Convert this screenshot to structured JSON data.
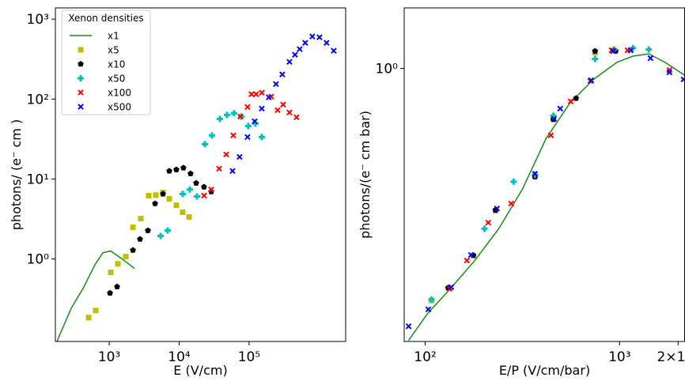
{
  "chart_data": [
    {
      "type": "scatter",
      "xscale": "log",
      "yscale": "log",
      "xlabel": "E (V/cm)",
      "ylabel": "photons/ (e⁻ cm )",
      "xlim": [
        170,
        2400000
      ],
      "ylim": [
        0.093,
        1380
      ],
      "xticks": [
        {
          "value": 1000,
          "label": "10³"
        },
        {
          "value": 10000,
          "label": "10⁴"
        },
        {
          "value": 100000,
          "label": "10⁵"
        }
      ],
      "yticks": [
        {
          "value": 1,
          "label": "10⁰"
        },
        {
          "value": 10,
          "label": "10¹"
        },
        {
          "value": 100,
          "label": "10²"
        },
        {
          "value": 1000,
          "label": "10³"
        }
      ],
      "legend": "upper left",
      "legend_title": "Xenon densities",
      "series": [
        {
          "name": "x1",
          "color": "#1a8a1a",
          "style": "line",
          "x": [
            180,
            194,
            287,
            424,
            627,
            813,
            1053,
            1367,
            1773,
            2300
          ],
          "values": [
            0.093,
            0.11,
            0.243,
            0.43,
            0.85,
            1.2,
            1.26,
            1.07,
            0.91,
            0.76
          ]
        },
        {
          "name": "x5",
          "color": "#bfbf00",
          "marker": "s",
          "x": [
            508,
            642,
            1054,
            1331,
            1726,
            2183,
            2830,
            3673,
            4643,
            5867,
            7228,
            9120,
            11240,
            13840
          ],
          "values": [
            0.185,
            0.227,
            0.68,
            0.87,
            1.07,
            2.49,
            3.2,
            6.2,
            6.3,
            6.8,
            5.65,
            4.7,
            3.84,
            3.35
          ]
        },
        {
          "name": "x10",
          "color": "#000000",
          "marker": "p",
          "x": [
            1026,
            1297,
            2183,
            2755,
            3574,
            4525,
            5867,
            7228,
            9120,
            11500,
            14560,
            17500,
            22650,
            28700
          ],
          "values": [
            0.375,
            0.45,
            1.29,
            1.77,
            2.27,
            4.93,
            6.5,
            12.6,
            13.1,
            13.8,
            11.7,
            8.9,
            7.96,
            6.95
          ]
        },
        {
          "name": "x50",
          "color": "#00bfbf",
          "marker": "P",
          "x": [
            5425,
            6850,
            11240,
            14220,
            17960,
            23300,
            29450,
            38200,
            48300,
            60960,
            77100,
            97400,
            123000,
            151700
          ],
          "values": [
            1.94,
            2.27,
            6.5,
            7.4,
            6.05,
            27.3,
            35.1,
            56.5,
            63.4,
            66.4,
            60.5,
            46,
            49.3,
            33.5
          ]
        },
        {
          "name": "x100",
          "color": "#ff0000",
          "marker": "X",
          "x": [
            22700,
            28700,
            37200,
            47000,
            59400,
            75100,
            94900,
            108000,
            126000,
            152000,
            207000,
            255000,
            306000,
            377000,
            476000
          ],
          "values": [
            6.2,
            7.4,
            13.5,
            20.3,
            35.1,
            60.5,
            79.6,
            115,
            115,
            120,
            107,
            72.6,
            85.3,
            67.9,
            59.2
          ]
        },
        {
          "name": "x500",
          "color": "#0000ff",
          "marker": "X",
          "x": [
            57900,
            73100,
            94900,
            120000,
            151700,
            191000,
            242000,
            298000,
            377000,
            452000,
            528000,
            634000,
            801000,
            1014000,
            1280000,
            1620000
          ],
          "values": [
            12.6,
            18.9,
            33.5,
            52.8,
            76,
            105,
            154,
            203,
            292,
            358,
            421,
            505,
            606,
            592,
            505,
            402
          ]
        }
      ]
    },
    {
      "type": "scatter",
      "xscale": "log",
      "yscale": "log",
      "xlabel": "E/P (V/cm/bar)",
      "ylabel": "photons/(e⁻ cm bar)",
      "xlim": [
        78,
        2170
      ],
      "ylim": [
        0.12,
        1.6
      ],
      "xticks": [
        {
          "value": 100,
          "label": "10²"
        },
        {
          "value": 1000,
          "label": "10³"
        },
        {
          "value": 2000,
          "label": "2×10³"
        }
      ],
      "yticks": [
        {
          "value": 1,
          "label": "10⁰"
        }
      ],
      "series": [
        {
          "color": "#1a8a1a",
          "style": "line",
          "x": [
            82.2,
            102.8,
            136,
            180,
            239,
            316,
            419,
            555,
            734,
            972,
            1172,
            1413,
            1706,
            2170
          ],
          "values": [
            0.121,
            0.149,
            0.182,
            0.225,
            0.288,
            0.391,
            0.581,
            0.764,
            0.918,
            1.05,
            1.1,
            1.12,
            1.05,
            0.947
          ]
        },
        {
          "color": "#bfbf00",
          "marker": "s",
          "x": [
            107.8,
            133.7,
            177,
            230,
            367,
            456,
            748,
            927
          ],
          "values": [
            0.165,
            0.181,
            0.234,
            0.331,
            0.433,
            0.676,
            1.13,
            1.151
          ]
        },
        {
          "color": "#000000",
          "marker": "p",
          "x": [
            131.2,
            177,
            230,
            367,
            456,
            597,
            748,
            955
          ],
          "values": [
            0.182,
            0.234,
            0.333,
            0.431,
            0.673,
            0.793,
            1.144,
            1.144
          ]
        },
        {
          "color": "#00bfbf",
          "marker": "P",
          "x": [
            107.8,
            202,
            285,
            367,
            456,
            748,
            937,
            1172,
            1413
          ],
          "values": [
            0.166,
            0.288,
            0.415,
            0.438,
            0.693,
            1.076,
            1.158,
            1.172,
            1.158
          ]
        },
        {
          "color": "#ff0000",
          "marker": "X",
          "x": [
            133.7,
            164,
            211,
            277,
            443,
            560,
            707,
            910,
            1099,
            1803
          ],
          "values": [
            0.181,
            0.225,
            0.302,
            0.35,
            0.595,
            0.774,
            0.907,
            1.151,
            1.151,
            0.988
          ]
        },
        {
          "color": "#0000ff",
          "marker": "X",
          "x": [
            82.2,
            103.8,
            136.2,
            172,
            234,
            367,
            460,
            495,
            714,
            927,
            1140,
            1442,
            1803,
            2133
          ],
          "values": [
            0.135,
            0.154,
            0.183,
            0.235,
            0.337,
            0.441,
            0.676,
            0.732,
            0.912,
            1.144,
            1.151,
            1.083,
            0.97,
            0.918
          ]
        }
      ]
    }
  ]
}
